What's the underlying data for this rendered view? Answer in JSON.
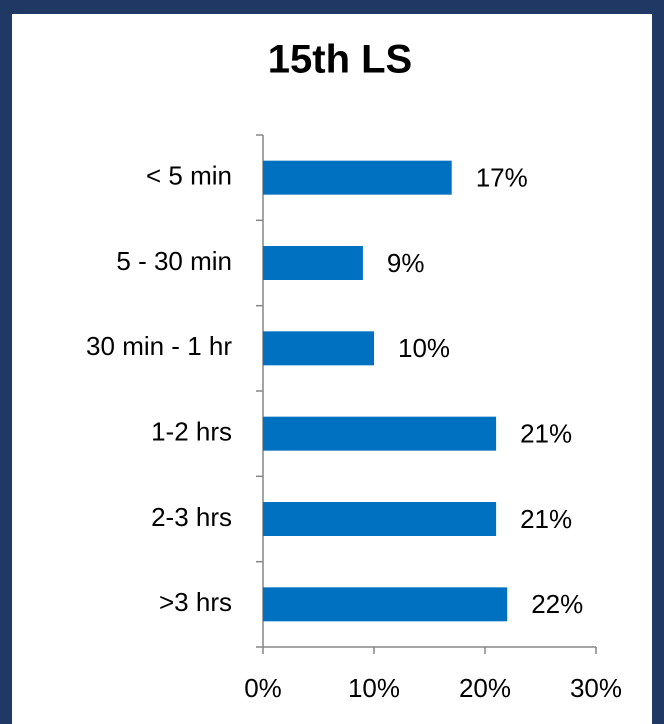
{
  "chart_data": {
    "type": "bar",
    "orientation": "horizontal",
    "title": "15th LS",
    "categories": [
      "< 5 min",
      "5 - 30 min",
      "30 min - 1 hr",
      "1-2 hrs",
      "2-3 hrs",
      ">3 hrs"
    ],
    "values": [
      17,
      9,
      10,
      21,
      21,
      22
    ],
    "value_labels": [
      "17%",
      "9%",
      "10%",
      "21%",
      "21%",
      "22%"
    ],
    "color": "#0070c0",
    "xlim": [
      0,
      30
    ],
    "xticks": [
      {
        "value": 0,
        "label": "0%"
      },
      {
        "value": 10,
        "label": "10%"
      },
      {
        "value": 20,
        "label": "20%"
      },
      {
        "value": 30,
        "label": "30%"
      }
    ],
    "grid": false
  }
}
